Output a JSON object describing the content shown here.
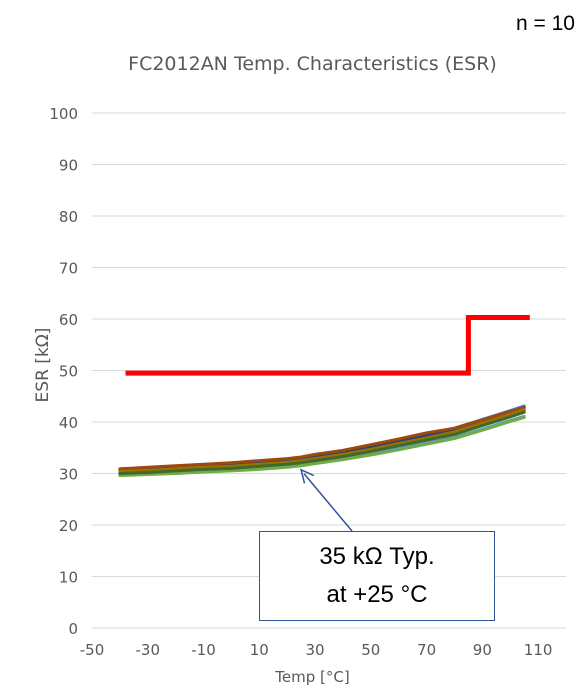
{
  "n_label": "n = 10",
  "chart_data": {
    "type": "line",
    "title": "FC2012AN Temp. Characteristics (ESR)",
    "xlabel": "Temp [°C]",
    "ylabel": "ESR [kΩ]",
    "xlim": [
      -50,
      120
    ],
    "ylim": [
      0,
      100
    ],
    "xticks": [
      -50,
      -30,
      -10,
      10,
      30,
      50,
      70,
      90,
      110
    ],
    "yticks": [
      0,
      10,
      20,
      30,
      40,
      50,
      60,
      70,
      80,
      90,
      100
    ],
    "grid": "horizontal",
    "limit_line": {
      "color": "#ff0000",
      "x": [
        -38,
        85,
        85,
        107
      ],
      "y": [
        49.5,
        49.5,
        60.3,
        60.3
      ]
    },
    "series_x": [
      -40,
      -30,
      -20,
      -10,
      0,
      10,
      20,
      25,
      30,
      40,
      50,
      60,
      70,
      80,
      90,
      100,
      105
    ],
    "series": [
      {
        "color": "#a5a5a5",
        "values": [
          30.1,
          30.3,
          30.6,
          30.9,
          31.1,
          31.5,
          31.9,
          32.2,
          32.6,
          33.4,
          34.4,
          35.5,
          36.6,
          37.7,
          39.4,
          41.1,
          42.0
        ]
      },
      {
        "color": "#5b9bd5",
        "values": [
          29.8,
          30.0,
          30.3,
          30.6,
          30.8,
          31.1,
          31.5,
          31.8,
          32.2,
          33.0,
          34.0,
          35.0,
          36.0,
          37.0,
          38.6,
          40.3,
          41.1
        ]
      },
      {
        "color": "#ffc000",
        "values": [
          30.5,
          30.7,
          31.0,
          31.3,
          31.6,
          32.0,
          32.4,
          32.7,
          33.1,
          33.9,
          35.0,
          36.1,
          37.2,
          38.4,
          40.1,
          41.8,
          42.7
        ]
      },
      {
        "color": "#4472c4",
        "values": [
          30.9,
          31.1,
          31.4,
          31.7,
          32.0,
          32.4,
          32.8,
          33.1,
          33.5,
          34.3,
          35.4,
          36.5,
          37.6,
          38.8,
          40.5,
          42.2,
          43.1
        ]
      },
      {
        "color": "#70ad47",
        "values": [
          29.6,
          29.8,
          30.0,
          30.3,
          30.5,
          30.8,
          31.2,
          31.5,
          31.9,
          32.7,
          33.6,
          34.6,
          35.7,
          36.8,
          38.4,
          40.1,
          40.9
        ]
      },
      {
        "color": "#264478",
        "values": [
          30.6,
          30.8,
          31.1,
          31.4,
          31.7,
          32.1,
          32.5,
          32.8,
          33.2,
          34.0,
          35.1,
          36.2,
          37.3,
          38.5,
          40.2,
          41.9,
          42.8
        ]
      },
      {
        "color": "#9e480e",
        "values": [
          30.9,
          31.2,
          31.5,
          31.8,
          32.1,
          32.5,
          32.9,
          33.2,
          33.7,
          34.5,
          35.6,
          36.7,
          37.9,
          38.8,
          40.4,
          42.0,
          42.8
        ]
      },
      {
        "color": "#636363",
        "values": [
          30.3,
          30.5,
          30.8,
          31.1,
          31.3,
          31.7,
          32.1,
          32.4,
          32.8,
          33.6,
          34.6,
          35.7,
          36.8,
          37.9,
          39.6,
          41.3,
          42.2
        ]
      },
      {
        "color": "#997300",
        "values": [
          30.4,
          30.6,
          30.9,
          31.2,
          31.4,
          31.8,
          32.2,
          32.5,
          32.9,
          33.7,
          34.7,
          35.8,
          36.9,
          38.1,
          39.8,
          41.5,
          42.4
        ]
      },
      {
        "color": "#43682b",
        "values": [
          30.0,
          30.2,
          30.5,
          30.8,
          31.0,
          31.4,
          31.8,
          32.1,
          32.5,
          33.3,
          34.3,
          35.4,
          36.5,
          37.6,
          39.3,
          41.0,
          41.9
        ]
      }
    ],
    "annotation": {
      "lines": [
        "35 kΩ Typ.",
        "at +25 °C"
      ],
      "arrow_target": {
        "x": 25,
        "y": 31.5
      }
    }
  }
}
